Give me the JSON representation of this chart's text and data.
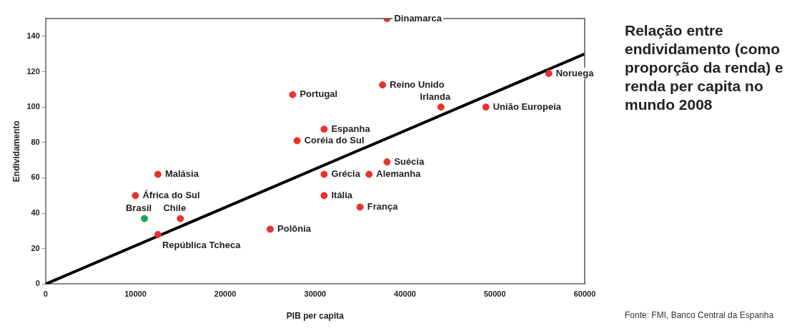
{
  "chart_data": {
    "type": "scatter",
    "title": "Relação entre endividamento (como proporção da renda) e renda per capita no mundo 2008",
    "xlabel": "PIB per capita",
    "ylabel": "Endividamento",
    "xlim": [
      0,
      60000
    ],
    "ylim": [
      0,
      150
    ],
    "xticks": [
      0,
      10000,
      20000,
      30000,
      40000,
      50000,
      60000
    ],
    "yticks": [
      0,
      20,
      40,
      60,
      80,
      100,
      120,
      140
    ],
    "grid": false,
    "legend": false,
    "marker": "circle",
    "series": [
      {
        "type": "scatter",
        "colors": [
          "#e8312f",
          "#e8312f",
          "#e8312f",
          "#e8312f",
          "#e8312f",
          "#e8312f",
          "#e8312f",
          "#e8312f",
          "#e8312f",
          "#e8312f",
          "#e8312f",
          "#e8312f",
          "#e8312f",
          "#e8312f",
          "#e8312f",
          "#e8312f",
          "#21a34a",
          "#e8312f",
          "#e8312f"
        ],
        "x": [
          38000,
          56000,
          37500,
          27500,
          44000,
          49000,
          31000,
          28000,
          38000,
          31000,
          36000,
          12500,
          10000,
          31000,
          35000,
          15000,
          11000,
          25000,
          12500
        ],
        "values": [
          150,
          119,
          112.5,
          107,
          100,
          100,
          87.5,
          81,
          69,
          62,
          62,
          62,
          50,
          50,
          43.5,
          37,
          37,
          31,
          28
        ]
      },
      {
        "type": "line",
        "color": "#000000",
        "x": [
          0,
          60000
        ],
        "values": [
          0,
          130
        ],
        "line_style": "solid",
        "marker": "none"
      }
    ],
    "annotations": [
      {
        "text": "Dinamarca",
        "x": 38000,
        "y": 150
      },
      {
        "text": "Noruega",
        "x": 56000,
        "y": 119
      },
      {
        "text": "Reino Unido",
        "x": 37500,
        "y": 112.5
      },
      {
        "text": "Portugal",
        "x": 27500,
        "y": 107
      },
      {
        "text": "Irlanda",
        "x": 44000,
        "y": 100
      },
      {
        "text": "União Europeia",
        "x": 49000,
        "y": 100
      },
      {
        "text": "Espanha",
        "x": 31000,
        "y": 87.5
      },
      {
        "text": "Coréia do Sul",
        "x": 28000,
        "y": 81
      },
      {
        "text": "Suécia",
        "x": 38000,
        "y": 69
      },
      {
        "text": "Grécia",
        "x": 31000,
        "y": 62
      },
      {
        "text": "Alemanha",
        "x": 36000,
        "y": 62
      },
      {
        "text": "Malásia",
        "x": 12500,
        "y": 62
      },
      {
        "text": "África do Sul",
        "x": 10000,
        "y": 50
      },
      {
        "text": "Itália",
        "x": 31000,
        "y": 50
      },
      {
        "text": "França",
        "x": 35000,
        "y": 43.5
      },
      {
        "text": "Chile",
        "x": 15000,
        "y": 37
      },
      {
        "text": "Brasil",
        "x": 11000,
        "y": 37
      },
      {
        "text": "Polônia",
        "x": 25000,
        "y": 31
      },
      {
        "text": "República Tcheca",
        "x": 12500,
        "y": 28
      },
      "Fonte: FMI, Banco Central da Espanha"
    ]
  }
}
